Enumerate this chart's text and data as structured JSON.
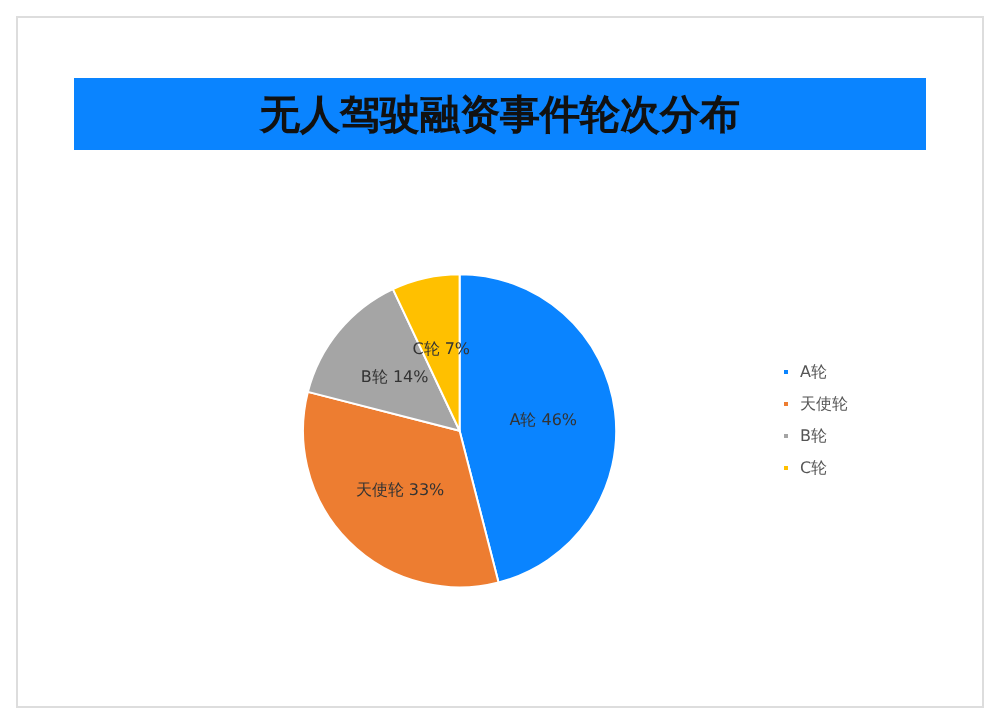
{
  "chart_data": {
    "type": "pie",
    "title": "无人驾驶融资事件轮次分布",
    "categories": [
      "A轮",
      "天使轮",
      "B轮",
      "C轮"
    ],
    "values": [
      46,
      33,
      14,
      7
    ],
    "colors": [
      "#0a84ff",
      "#ed7d31",
      "#a5a5a5",
      "#ffc000"
    ],
    "value_labels": [
      "A轮 46%",
      "天使轮 33%",
      "B轮 14%",
      "C轮 7%"
    ],
    "legend": "right"
  }
}
